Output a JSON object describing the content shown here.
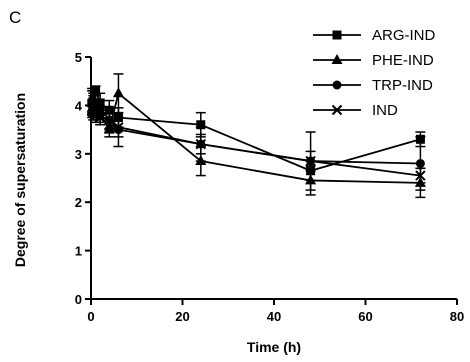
{
  "panel_label": "C",
  "chart_data": {
    "type": "line",
    "title": "",
    "xlabel": "Time (h)",
    "ylabel": "Degree of supersaturation",
    "xlim": [
      0,
      80
    ],
    "ylim": [
      0,
      5
    ],
    "x_ticks": [
      0,
      20,
      40,
      60,
      80
    ],
    "y_ticks": [
      0,
      1,
      2,
      3,
      4,
      5
    ],
    "grid": false,
    "legend_position": "top-right",
    "series": [
      {
        "name": "ARG-IND",
        "marker": "square",
        "points": [
          {
            "x": 0.25,
            "y": 4.05,
            "err": 0.25
          },
          {
            "x": 0.5,
            "y": 4.0,
            "err": 0.2
          },
          {
            "x": 1,
            "y": 4.3,
            "err": 0.1
          },
          {
            "x": 2,
            "y": 4.05,
            "err": 0.2
          },
          {
            "x": 4,
            "y": 3.9,
            "err": 0.2
          },
          {
            "x": 6,
            "y": 3.75,
            "err": 0.2
          },
          {
            "x": 24,
            "y": 3.6,
            "err": 0.25
          },
          {
            "x": 48,
            "y": 2.65,
            "err": 0.2
          },
          {
            "x": 72,
            "y": 3.3,
            "err": 0.15
          }
        ]
      },
      {
        "name": "PHE-IND",
        "marker": "triangle",
        "points": [
          {
            "x": 0.25,
            "y": 3.95,
            "err": 0.15
          },
          {
            "x": 0.5,
            "y": 4.15,
            "err": 0.15
          },
          {
            "x": 1,
            "y": 3.85,
            "err": 0.15
          },
          {
            "x": 2,
            "y": 3.8,
            "err": 0.15
          },
          {
            "x": 4,
            "y": 3.5,
            "err": 0.15
          },
          {
            "x": 6,
            "y": 4.25,
            "err": 0.4
          },
          {
            "x": 24,
            "y": 2.85,
            "err": 0.3
          },
          {
            "x": 48,
            "y": 2.45,
            "err": 0.3
          },
          {
            "x": 72,
            "y": 2.4,
            "err": 0.3
          }
        ]
      },
      {
        "name": "TRP-IND",
        "marker": "circle",
        "points": [
          {
            "x": 0.25,
            "y": 4.1,
            "err": 0.25
          },
          {
            "x": 0.5,
            "y": 4.05,
            "err": 0.2
          },
          {
            "x": 1,
            "y": 4.0,
            "err": 0.2
          },
          {
            "x": 2,
            "y": 3.95,
            "err": 0.15
          },
          {
            "x": 4,
            "y": 3.7,
            "err": 0.2
          },
          {
            "x": 6,
            "y": 3.5,
            "err": 0.35
          },
          {
            "x": 24,
            "y": 3.2,
            "err": 0.35
          },
          {
            "x": 48,
            "y": 2.85,
            "err": 0.6
          },
          {
            "x": 72,
            "y": 2.8,
            "err": 0.55
          }
        ]
      },
      {
        "name": "IND",
        "marker": "x",
        "points": [
          {
            "x": 0.25,
            "y": 3.9,
            "err": 0.15
          },
          {
            "x": 0.5,
            "y": 3.85,
            "err": 0.15
          },
          {
            "x": 1,
            "y": 3.8,
            "err": 0.15
          },
          {
            "x": 2,
            "y": 3.75,
            "err": 0.15
          },
          {
            "x": 4,
            "y": 3.6,
            "err": 0.15
          },
          {
            "x": 6,
            "y": 3.55,
            "err": 0.2
          },
          {
            "x": 24,
            "y": 3.2,
            "err": 0.2
          },
          {
            "x": 48,
            "y": 2.85,
            "err": 0.2
          },
          {
            "x": 72,
            "y": 2.55,
            "err": 0.15
          }
        ]
      }
    ]
  }
}
